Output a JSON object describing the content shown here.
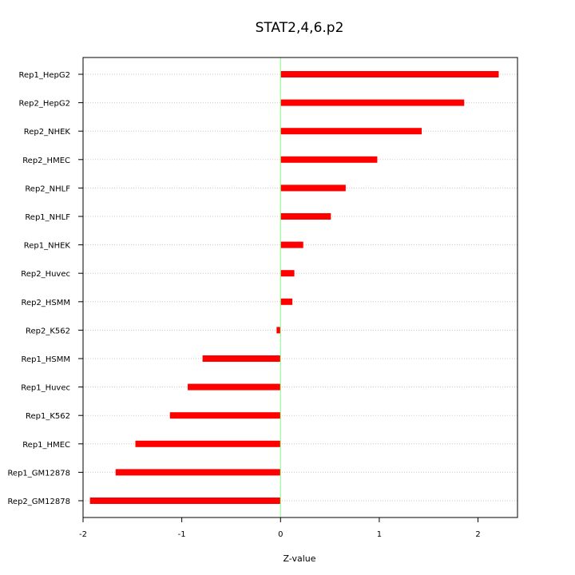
{
  "chart_data": {
    "type": "bar",
    "orientation": "horizontal",
    "title": "STAT2,4,6.p2",
    "xlabel": "Z-value",
    "ylabel": "",
    "xlim": [
      -2.0,
      2.4
    ],
    "xticks": [
      -2,
      -1,
      0,
      1,
      2
    ],
    "xtick_labels": [
      "-2",
      "-1",
      "0",
      "1",
      "2"
    ],
    "categories": [
      "Rep1_HepG2",
      "Rep2_HepG2",
      "Rep2_NHEK",
      "Rep2_HMEC",
      "Rep2_NHLF",
      "Rep1_NHLF",
      "Rep1_NHEK",
      "Rep2_Huvec",
      "Rep2_HSMM",
      "Rep2_K562",
      "Rep1_HSMM",
      "Rep1_Huvec",
      "Rep1_K562",
      "Rep1_HMEC",
      "Rep1_GM12878",
      "Rep2_GM12878"
    ],
    "values": [
      2.21,
      1.86,
      1.43,
      0.98,
      0.66,
      0.51,
      0.23,
      0.14,
      0.12,
      -0.04,
      -0.79,
      -0.94,
      -1.12,
      -1.47,
      -1.67,
      -1.93
    ],
    "bar_color": "#ff0000",
    "zero_line_color": "#7fff7f",
    "grid": true,
    "grid_style": "dotted horizontal"
  }
}
